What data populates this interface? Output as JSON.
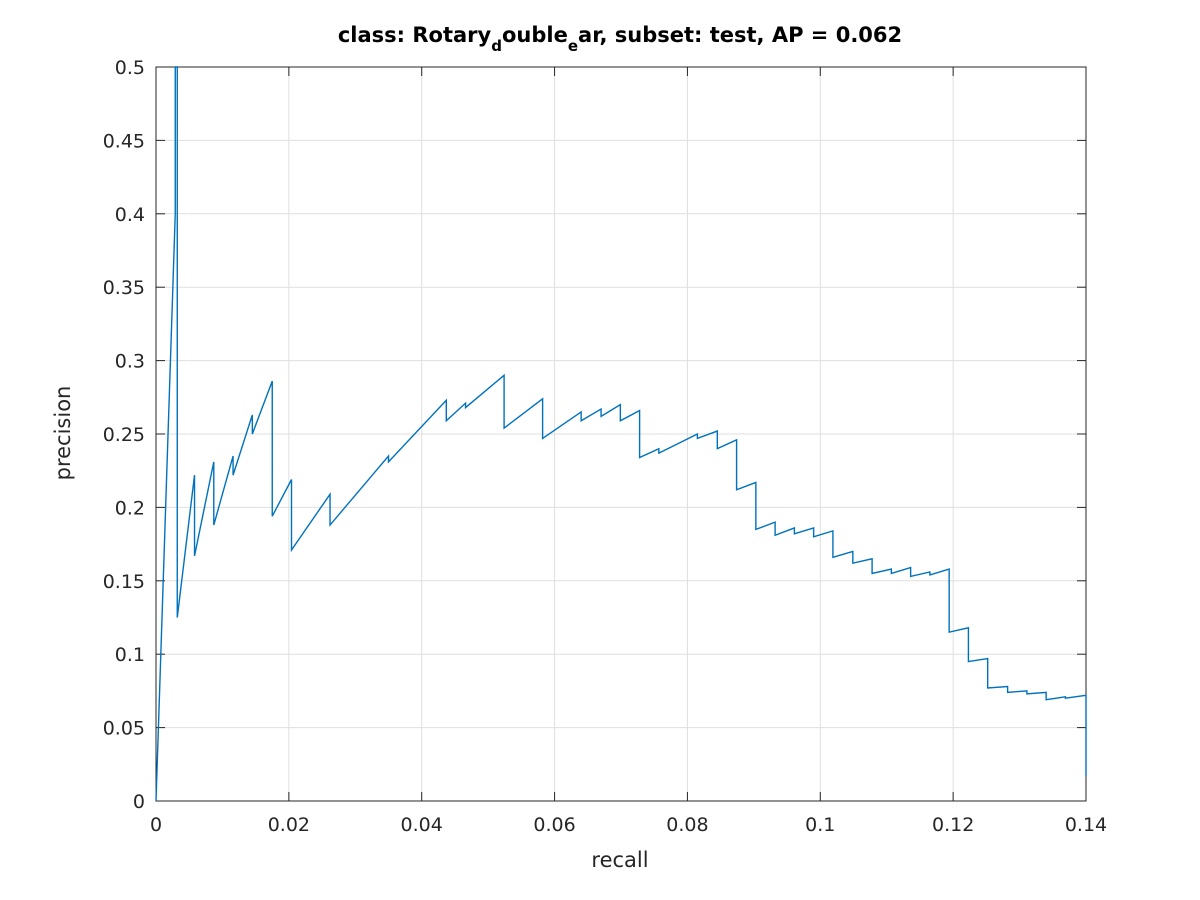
{
  "chart_data": {
    "type": "line",
    "title": {
      "prefix": "class: Rotary",
      "sub1": "d",
      "mid": "ouble",
      "sub2": "e",
      "suffix": "ar, subset: test, AP = 0.062"
    },
    "xlabel": "recall",
    "ylabel": "precision",
    "xlim": [
      0,
      0.14
    ],
    "ylim": [
      0,
      0.5
    ],
    "xticks": [
      0,
      0.02,
      0.04,
      0.06,
      0.08,
      0.1,
      0.12,
      0.14
    ],
    "xtick_labels": [
      "0",
      "0.02",
      "0.04",
      "0.06",
      "0.08",
      "0.1",
      "0.12",
      "0.14"
    ],
    "yticks": [
      0,
      0.05,
      0.1,
      0.15,
      0.2,
      0.25,
      0.3,
      0.35,
      0.4,
      0.45,
      0.5
    ],
    "ytick_labels": [
      "0",
      "0.05",
      "0.1",
      "0.15",
      "0.2",
      "0.25",
      "0.3",
      "0.35",
      "0.4",
      "0.45",
      "0.5"
    ],
    "grid": true,
    "series_color": "#0072bd",
    "series": [
      {
        "x": [
          0,
          0.0029,
          0.0029,
          0.0032,
          0.0032,
          0.0058,
          0.0058,
          0.0087,
          0.0087,
          0.0116,
          0.0116,
          0.0145,
          0.0145,
          0.0175,
          0.0175,
          0.0204,
          0.0204,
          0.0262,
          0.0262,
          0.035,
          0.035,
          0.0437,
          0.0437,
          0.0466,
          0.0466,
          0.0524,
          0.0524,
          0.0582,
          0.0582,
          0.064,
          0.064,
          0.067,
          0.067,
          0.0699,
          0.0699,
          0.0728,
          0.0728,
          0.0757,
          0.0757,
          0.0815,
          0.0815,
          0.0845,
          0.0845,
          0.0874,
          0.0874,
          0.0903,
          0.0903,
          0.0932,
          0.0932,
          0.0961,
          0.0961,
          0.099,
          0.099,
          0.1019,
          0.1019,
          0.1049,
          0.1049,
          0.1078,
          0.1078,
          0.1107,
          0.1107,
          0.1136,
          0.1136,
          0.1165,
          0.1165,
          0.1194,
          0.1194,
          0.1223,
          0.1223,
          0.1252,
          0.1252,
          0.1282,
          0.1282,
          0.1311,
          0.1311,
          0.134,
          0.134,
          0.1369,
          0.1369,
          0.14,
          0.14
        ],
        "y": [
          0,
          0.4,
          0.5,
          0.5,
          0.125,
          0.222,
          0.167,
          0.231,
          0.188,
          0.235,
          0.222,
          0.263,
          0.25,
          0.286,
          0.194,
          0.219,
          0.171,
          0.209,
          0.188,
          0.235,
          0.231,
          0.273,
          0.259,
          0.271,
          0.268,
          0.29,
          0.254,
          0.274,
          0.247,
          0.265,
          0.259,
          0.267,
          0.262,
          0.27,
          0.259,
          0.266,
          0.234,
          0.24,
          0.237,
          0.25,
          0.247,
          0.252,
          0.24,
          0.246,
          0.212,
          0.217,
          0.185,
          0.19,
          0.181,
          0.186,
          0.182,
          0.186,
          0.18,
          0.184,
          0.166,
          0.17,
          0.162,
          0.165,
          0.155,
          0.158,
          0.155,
          0.159,
          0.153,
          0.156,
          0.154,
          0.158,
          0.115,
          0.118,
          0.095,
          0.097,
          0.077,
          0.078,
          0.074,
          0.075,
          0.073,
          0.074,
          0.069,
          0.071,
          0.07,
          0.072,
          0.017
        ]
      }
    ]
  }
}
